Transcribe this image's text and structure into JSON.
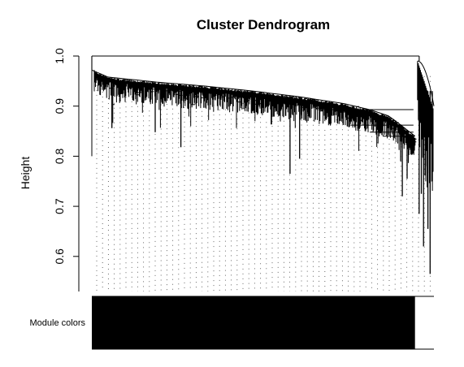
{
  "chart_data": {
    "type": "dendrogram",
    "title": "Cluster Dendrogram",
    "ylabel": "Height",
    "ylim": [
      0.53,
      1.0
    ],
    "yticks": [
      0.6,
      0.7,
      0.8,
      0.9,
      1.0
    ],
    "ytick_labels": [
      "0.6",
      "0.7",
      "0.8",
      "0.9",
      "1.0"
    ],
    "root_height": 1.0,
    "main_cluster": {
      "share_of_leaves": 0.945,
      "merge_profile": [
        [
          0.0,
          0.972
        ],
        [
          0.05,
          0.958
        ],
        [
          0.2,
          0.948
        ],
        [
          0.35,
          0.94
        ],
        [
          0.5,
          0.93
        ],
        [
          0.65,
          0.918
        ],
        [
          0.78,
          0.905
        ],
        [
          0.86,
          0.893
        ],
        [
          0.92,
          0.88
        ],
        [
          0.96,
          0.86
        ],
        [
          1.0,
          0.84
        ]
      ],
      "deep_branch_heights": [
        0.8,
        0.856,
        0.818,
        0.848,
        0.765,
        0.795,
        0.72,
        0.755,
        0.79
      ]
    },
    "outgroup": {
      "share_of_leaves": 0.055,
      "min_height": 0.565,
      "branch_heights": [
        0.685,
        0.725,
        0.62,
        0.78,
        0.655,
        0.565,
        0.75
      ]
    },
    "module_colors": {
      "label": "Module colors",
      "segments": [
        {
          "start": 0.0,
          "end": 0.945,
          "color": "#000000"
        },
        {
          "start": 0.945,
          "end": 1.0,
          "color": "#ffffff"
        }
      ]
    }
  }
}
